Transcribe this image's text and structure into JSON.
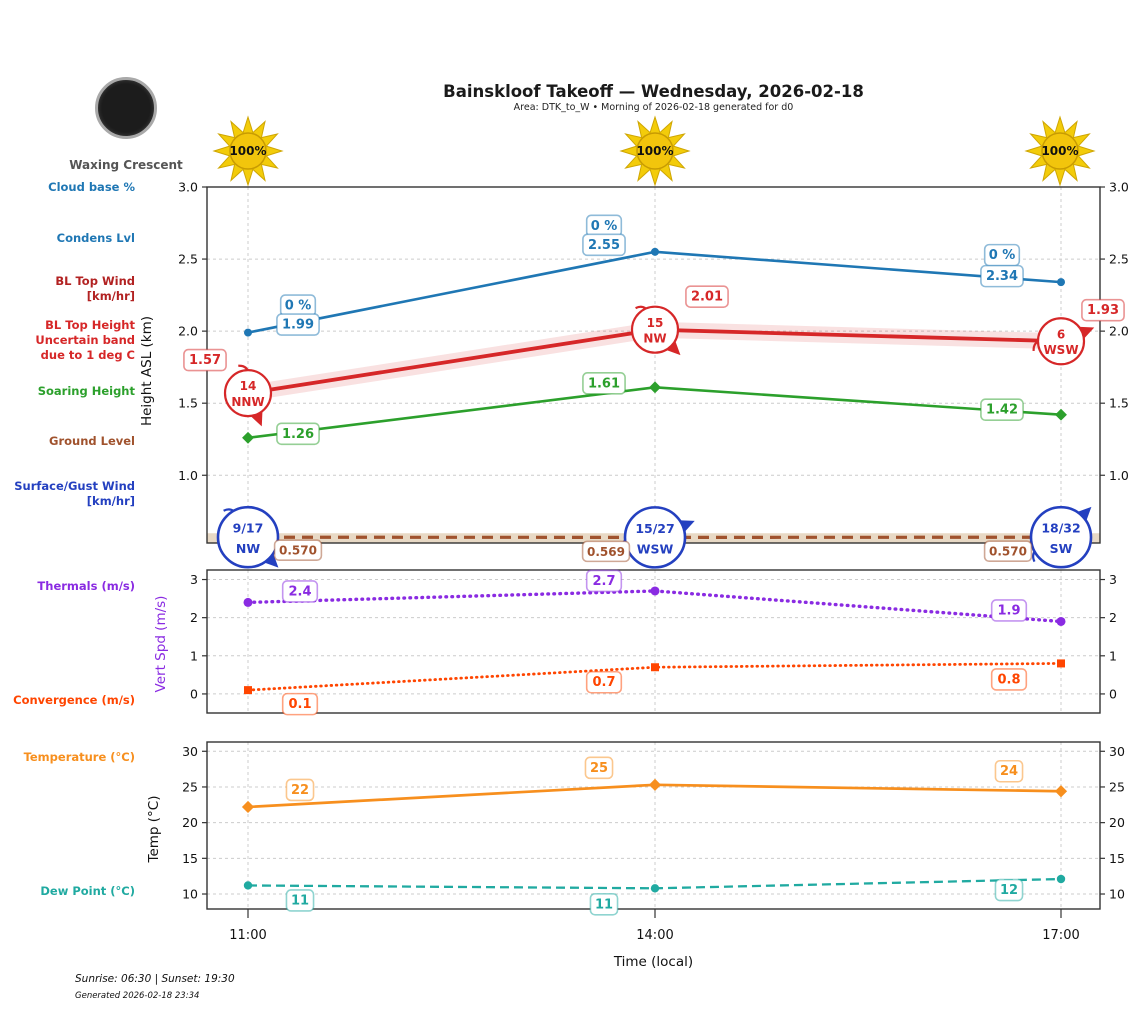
{
  "header": {
    "title": "Bainskloof Takeoff — Wednesday, 2026-02-18",
    "subtitle": "Area: DTK_to_W • Morning of 2026-02-18 generated for d0",
    "moon_phase": "Waxing Crescent"
  },
  "suns": {
    "percent_labels": [
      "100%",
      "100%",
      "100%"
    ]
  },
  "left_labels": [
    {
      "text": "Cloud base %",
      "color": "#1f77b4"
    },
    {
      "text": "Condens Lvl",
      "color": "#1f77b4"
    },
    {
      "text": "BL Top Wind\n[km/hr]",
      "color": "#b22222"
    },
    {
      "text": "BL Top Height\nUncertain band\ndue to 1 deg C",
      "color": "#d62728"
    },
    {
      "text": "Soaring Height",
      "color": "#2ca02c"
    },
    {
      "text": "Ground Level",
      "color": "#a0522d"
    },
    {
      "text": "Surface/Gust Wind\n[km/hr]",
      "color": "#2440c0"
    },
    {
      "text": "Thermals (m/s)",
      "color": "#8a2be2"
    },
    {
      "text": "Convergence (m/s)",
      "color": "#ff4500"
    },
    {
      "text": "Temperature (°C)",
      "color": "#f78f1e"
    },
    {
      "text": "Dew Point (°C)",
      "color": "#20aaa1"
    }
  ],
  "xaxis_label": "Time (local)",
  "footer": {
    "sunrise_sunset": "Sunrise: 06:30 | Sunset: 19:30",
    "generated": "Generated 2026-02-18 23:34"
  },
  "chart_data": [
    {
      "type": "line",
      "panel": "heights",
      "ylabel": "Height ASL (km)",
      "ylabel_color": "#111111",
      "x": [
        "11:00",
        "14:00",
        "17:00"
      ],
      "ylim": [
        0.53,
        3.0
      ],
      "yticks": [
        1.0,
        1.5,
        2.0,
        2.5,
        3.0
      ],
      "grid": true,
      "series": [
        {
          "name": "Condens Lvl",
          "color": "#1f77b4",
          "line": "solid",
          "marker": "circle",
          "values": [
            1.99,
            2.55,
            2.34
          ],
          "point_labels": [
            "1.99",
            "2.55",
            "2.34"
          ],
          "cloudbase_labels": [
            "0 %",
            "0 %",
            "0 %"
          ]
        },
        {
          "name": "BL Top Height",
          "color": "#d62728",
          "line": "solid",
          "marker": "none",
          "values": [
            1.57,
            2.01,
            1.93
          ],
          "point_labels": [
            "1.57",
            "2.01",
            "1.93"
          ],
          "uncertainty_band_km": 0.055,
          "wind_markers": {
            "speeds_kmh": [
              14,
              15,
              6
            ],
            "directions": [
              "NNW",
              "NW",
              "WSW"
            ]
          }
        },
        {
          "name": "Soaring Height",
          "color": "#2ca02c",
          "line": "solid",
          "marker": "diamond",
          "values": [
            1.26,
            1.61,
            1.42
          ],
          "point_labels": [
            "1.26",
            "1.61",
            "1.42"
          ]
        },
        {
          "name": "Ground Level",
          "color": "#a0522d",
          "line": "dashed",
          "marker": "none",
          "values": [
            0.57,
            0.569,
            0.57
          ],
          "point_labels": [
            "0.570",
            "0.569",
            "0.570"
          ]
        }
      ],
      "surface_gust_wind": {
        "color": "#2440c0",
        "speed_gust_kmh": [
          "9/17",
          "15/27",
          "18/32"
        ],
        "directions": [
          "NW",
          "WSW",
          "SW"
        ]
      }
    },
    {
      "type": "line",
      "panel": "vertical-speed",
      "ylabel": "Vert Spd (m/s)",
      "ylabel_color": "#8a2be2",
      "x": [
        "11:00",
        "14:00",
        "17:00"
      ],
      "ylim": [
        -0.5,
        3.25
      ],
      "yticks": [
        0,
        1,
        2,
        3
      ],
      "grid": true,
      "series": [
        {
          "name": "Thermals (m/s)",
          "color": "#8a2be2",
          "line": "dotted",
          "marker": "circle",
          "values": [
            2.4,
            2.7,
            1.9
          ],
          "point_labels": [
            "2.4",
            "2.7",
            "1.9"
          ]
        },
        {
          "name": "Convergence (m/s)",
          "color": "#ff4500",
          "line": "dotted",
          "marker": "square",
          "values": [
            0.1,
            0.7,
            0.8
          ],
          "point_labels": [
            "0.1",
            "0.7",
            "0.8"
          ]
        }
      ]
    },
    {
      "type": "line",
      "panel": "temperature",
      "ylabel": "Temp (°C)",
      "ylabel_color": "#111111",
      "x": [
        "11:00",
        "14:00",
        "17:00"
      ],
      "ylim": [
        7.9,
        31.3
      ],
      "yticks": [
        10,
        15,
        20,
        25,
        30
      ],
      "grid": true,
      "series": [
        {
          "name": "Temperature (°C)",
          "color": "#f78f1e",
          "line": "solid",
          "marker": "diamond",
          "values": [
            22.2,
            25.3,
            24.4
          ],
          "point_labels": [
            "22",
            "25",
            "24"
          ]
        },
        {
          "name": "Dew Point (°C)",
          "color": "#20aaa1",
          "line": "dashed",
          "marker": "circle",
          "values": [
            11.2,
            10.8,
            12.1
          ],
          "point_labels": [
            "11",
            "11",
            "12"
          ]
        }
      ]
    }
  ]
}
